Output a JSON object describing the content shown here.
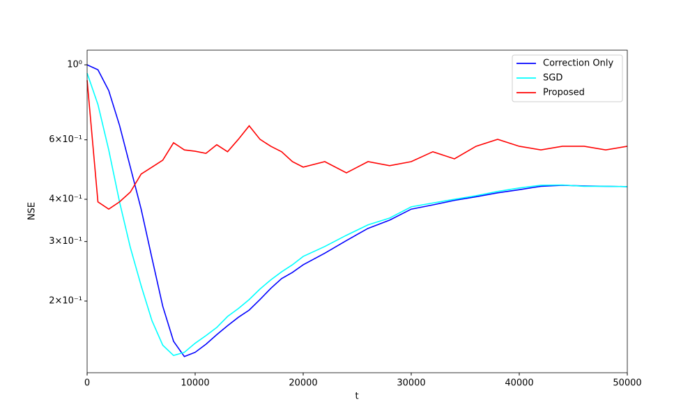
{
  "chart_data": {
    "type": "line",
    "x_label": "t",
    "y_label": "NSE",
    "x": [
      0,
      1000,
      2000,
      3000,
      4000,
      5000,
      6000,
      7000,
      8000,
      9000,
      10000,
      11000,
      12000,
      13000,
      14000,
      15000,
      16000,
      17000,
      18000,
      19000,
      20000,
      22000,
      24000,
      26000,
      28000,
      30000,
      32000,
      34000,
      36000,
      38000,
      40000,
      42000,
      44000,
      46000,
      48000,
      50000
    ],
    "series": [
      {
        "name": "Correction Only",
        "color": "#0000ff",
        "values": [
          1.0,
          0.967,
          0.839,
          0.662,
          0.498,
          0.374,
          0.268,
          0.193,
          0.152,
          0.137,
          0.141,
          0.149,
          0.159,
          0.169,
          0.179,
          0.188,
          0.202,
          0.218,
          0.233,
          0.243,
          0.256,
          0.277,
          0.302,
          0.328,
          0.347,
          0.374,
          0.385,
          0.397,
          0.407,
          0.418,
          0.427,
          0.437,
          0.44,
          0.438,
          0.437,
          0.436
        ]
      },
      {
        "name": "SGD",
        "color": "#00ffff",
        "values": [
          0.945,
          0.763,
          0.56,
          0.393,
          0.288,
          0.222,
          0.175,
          0.148,
          0.138,
          0.141,
          0.15,
          0.158,
          0.167,
          0.18,
          0.19,
          0.202,
          0.217,
          0.231,
          0.244,
          0.256,
          0.271,
          0.29,
          0.313,
          0.336,
          0.352,
          0.38,
          0.39,
          0.4,
          0.41,
          0.422,
          0.432,
          0.44,
          0.441,
          0.437,
          0.437,
          0.436
        ]
      },
      {
        "name": "Proposed",
        "color": "#ff0000",
        "values": [
          0.9,
          0.393,
          0.374,
          0.393,
          0.42,
          0.475,
          0.498,
          0.522,
          0.588,
          0.56,
          0.555,
          0.547,
          0.58,
          0.553,
          0.602,
          0.66,
          0.602,
          0.574,
          0.553,
          0.517,
          0.498,
          0.517,
          0.479,
          0.517,
          0.503,
          0.517,
          0.553,
          0.527,
          0.574,
          0.602,
          0.574,
          0.56,
          0.574,
          0.574,
          0.56,
          0.574
        ]
      }
    ],
    "xlim": [
      0,
      50000
    ],
    "xticks": [
      0,
      10000,
      20000,
      30000,
      40000,
      50000
    ],
    "ylim": [
      0.1227,
      1.105
    ],
    "y_scale": "log",
    "yticks": [
      {
        "value": 1,
        "label": "10⁰"
      },
      {
        "value": 0.6,
        "label": "6×10⁻¹"
      },
      {
        "value": 0.4,
        "label": "4×10⁻¹"
      },
      {
        "value": 0.3,
        "label": "3×10⁻¹"
      },
      {
        "value": 0.2,
        "label": "2×10⁻¹"
      }
    ],
    "legend": "upper right",
    "grid": false
  }
}
